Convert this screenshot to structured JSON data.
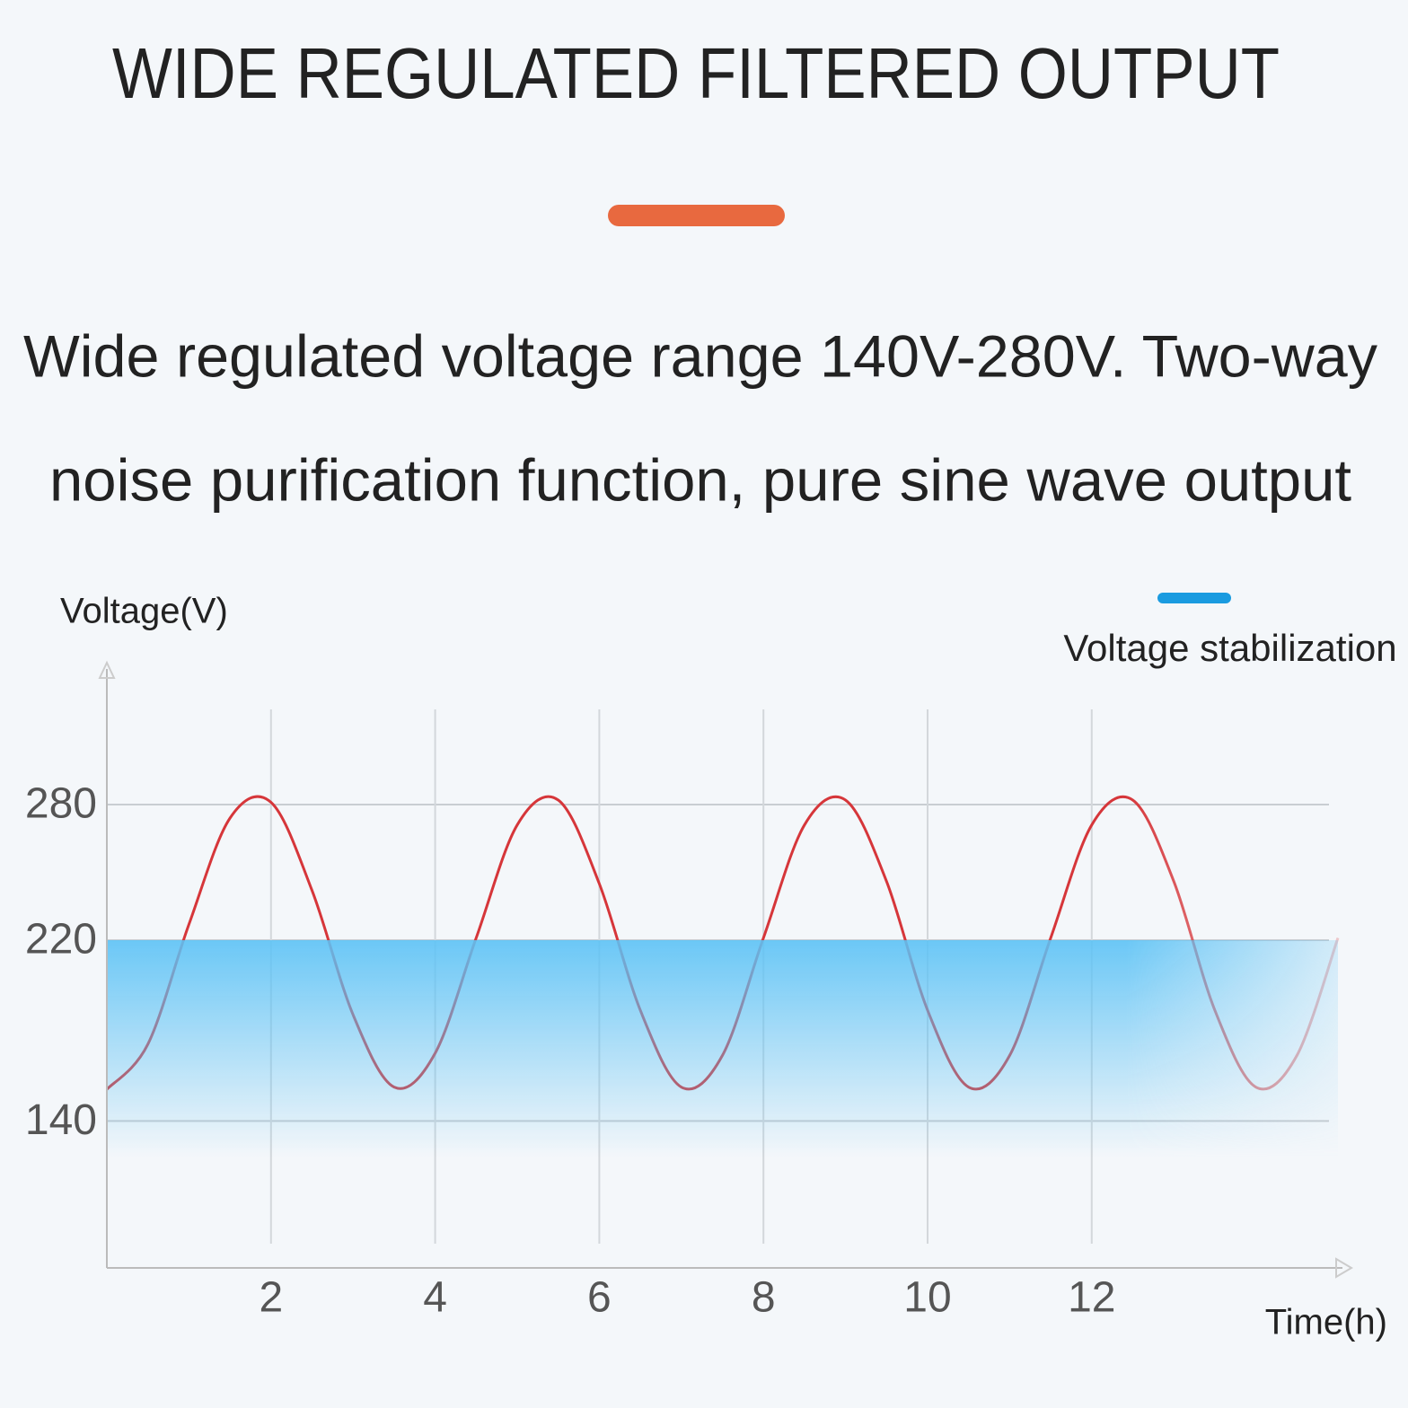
{
  "chart_data": {
    "type": "line",
    "title": "WIDE REGULATED FILTERED OUTPUT",
    "subtitle": [
      "Wide regulated voltage range 140V-280V. Two-way",
      "noise purification function, pure sine wave output"
    ],
    "xlabel": "Time(h)",
    "ylabel": "Voltage(V)",
    "xlim": [
      0,
      15
    ],
    "ylim": [
      75,
      340
    ],
    "xticks": [
      2,
      4,
      6,
      8,
      10,
      12
    ],
    "yticks": [
      140,
      220,
      280
    ],
    "grid": true,
    "legend": "top-right",
    "series": [
      {
        "color": "#d6363a",
        "x": [
          0,
          0.5,
          1,
          1.5,
          2,
          2.5,
          3,
          3.5,
          4,
          4.5,
          5,
          5.5,
          6,
          6.5,
          7,
          7.5,
          8,
          8.5,
          9,
          9.5,
          10,
          10.5,
          11,
          11.5,
          12,
          12.5,
          13,
          13.5,
          14,
          14.5,
          15
        ],
        "values": [
          154,
          174,
          227,
          274,
          281,
          242,
          187,
          155,
          170,
          221,
          271,
          282,
          245,
          189,
          155,
          169,
          221,
          271,
          282,
          246,
          189,
          155,
          169,
          221,
          271,
          282,
          246,
          189,
          155,
          169,
          221
        ]
      },
      {
        "name": "Voltage stabilization",
        "color": "#1a9be0",
        "x": [
          0,
          15
        ],
        "values": [
          220,
          220
        ]
      }
    ]
  }
}
